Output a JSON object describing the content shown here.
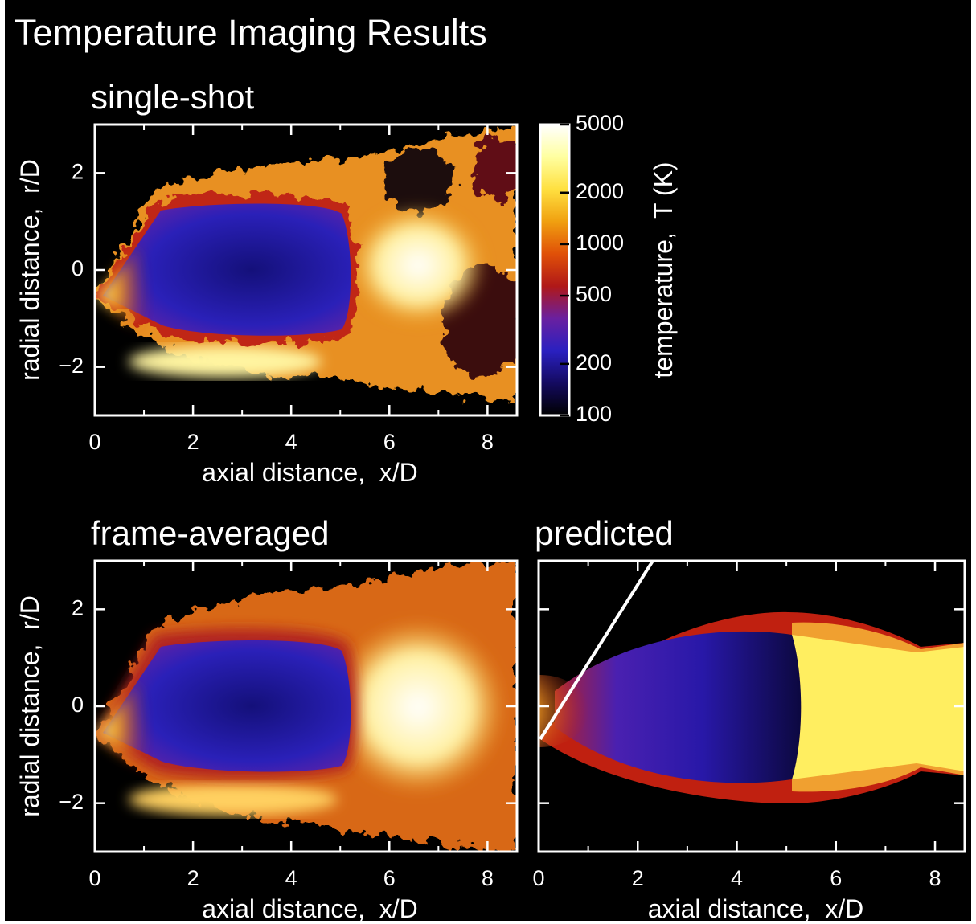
{
  "title": "Temperature Imaging Results",
  "chart_data": [
    {
      "type": "heatmap",
      "title": "single-shot",
      "xlabel": "axial distance,  x/D",
      "ylabel": "radial distance,  r/D",
      "xlim": [
        0,
        8.6
      ],
      "ylim": [
        -3,
        3
      ],
      "xticks": [
        0,
        2,
        4,
        6,
        8
      ],
      "yticks": [
        {
          "value": -2,
          "label": "−2"
        },
        0,
        2
      ],
      "show_ytick_labels": true
    },
    {
      "type": "heatmap",
      "title": "frame-averaged",
      "xlabel": "axial distance,  x/D",
      "ylabel": "radial distance,  r/D",
      "xlim": [
        0,
        8.6
      ],
      "ylim": [
        -3,
        3
      ],
      "xticks": [
        0,
        2,
        4,
        6,
        8
      ],
      "yticks": [
        {
          "value": -2,
          "label": "−2"
        },
        0,
        2
      ],
      "show_ytick_labels": true
    },
    {
      "type": "heatmap",
      "title": "predicted",
      "xlabel": "axial distance,  x/D",
      "xlim": [
        0,
        8.6
      ],
      "ylim": [
        -3,
        3
      ],
      "xticks": [
        0,
        2,
        4,
        6,
        8
      ],
      "yticks": [
        -2,
        0,
        2
      ],
      "show_ytick_labels": false
    },
    {
      "type": "colorbar",
      "ylabel": "temperature,  T (K)",
      "log": true,
      "ylim": [
        100,
        5000
      ],
      "yticks": [
        100,
        200,
        500,
        1000,
        2000,
        5000
      ],
      "colormap": [
        "#000000",
        "#140a60",
        "#2a20c0",
        "#6a20a0",
        "#b01818",
        "#e05008",
        "#f0a010",
        "#ffe040",
        "#ffffa0",
        "#ffffff"
      ]
    }
  ]
}
